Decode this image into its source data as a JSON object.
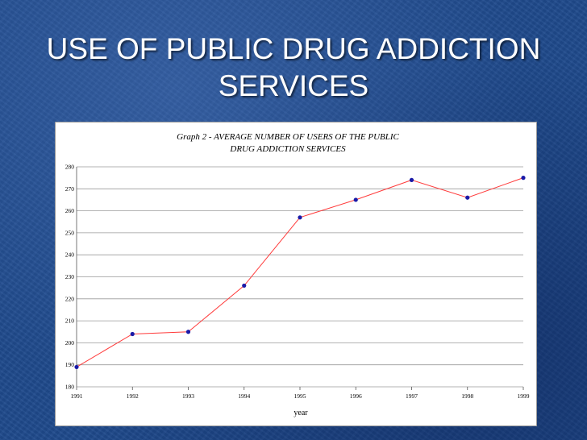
{
  "slide": {
    "title_line1": "USE OF PUBLIC DRUG ADDICTION",
    "title_line2": "SERVICES"
  },
  "chart_data": {
    "type": "line",
    "title_line1": "Graph 2 - AVERAGE NUMBER OF USERS OF THE PUBLIC",
    "title_line2": "DRUG ADDICTION SERVICES",
    "xlabel": "year",
    "ylabel": "",
    "x": [
      "1991",
      "1992",
      "1993",
      "1994",
      "1995",
      "1996",
      "1997",
      "1998",
      "1999"
    ],
    "series": [
      {
        "values": [
          189,
          204,
          205,
          226,
          257,
          265,
          274,
          266,
          275
        ]
      }
    ],
    "ylim": [
      180,
      280
    ],
    "yticks": [
      "180",
      "190",
      "200",
      "210",
      "220",
      "230",
      "240",
      "250",
      "260",
      "270",
      "280"
    ],
    "grid": true,
    "legend": "none",
    "colors": {
      "line": "#ff3b3b",
      "marker": "#1a1aa8",
      "grid": "#9a9a9a"
    }
  }
}
